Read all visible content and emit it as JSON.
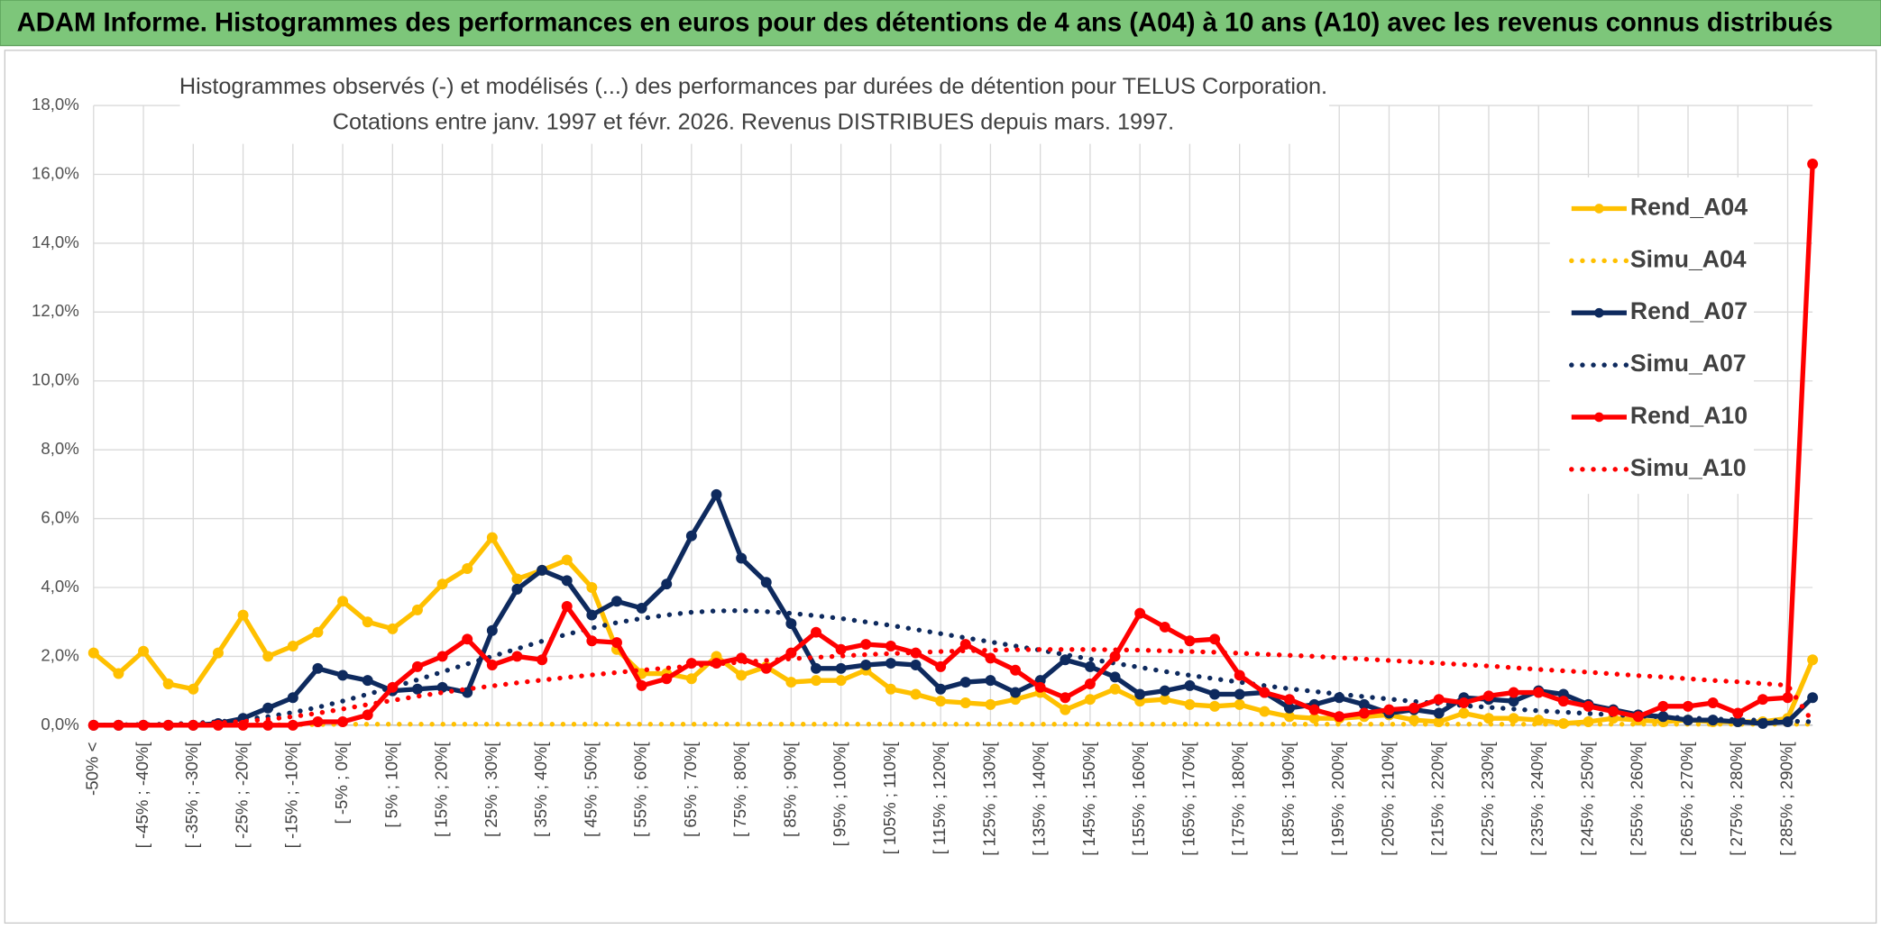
{
  "chart_data": {
    "type": "line",
    "title": "ADAM Informe. Histogrammes des performances en euros pour des détentions de 4 ans (A04) à 10 ans (A10) avec les revenus connus distribués",
    "subtitle": [
      "Histogrammes observés (-) et modélisés (...) des performances par durées de détention pour TELUS Corporation.",
      "Cotations entre janv. 1997 et févr. 2026. Revenus DISTRIBUES depuis mars. 1997."
    ],
    "categories": [
      "-50% <",
      null,
      "[ -45% ; -40%[",
      null,
      "[ -35% ; -30%[",
      null,
      "[ -25% ; -20%[",
      null,
      "[ -15% ; -10%[",
      null,
      "[ -5% ; 0%[",
      null,
      "[ 5% ; 10%[",
      null,
      "[ 15% ; 20%[",
      null,
      "[ 25% ; 30%[",
      null,
      "[ 35% ; 40%[",
      null,
      "[ 45% ; 50%[",
      null,
      "[ 55% ; 60%[",
      null,
      "[ 65% ; 70%[",
      null,
      "[ 75% ; 80%[",
      null,
      "[ 85% ; 90%[",
      null,
      "[ 95% ; 100%[",
      null,
      "[ 105% ; 110%[",
      null,
      "[ 115% ; 120%[",
      null,
      "[ 125% ; 130%[",
      null,
      "[ 135% ; 140%[",
      null,
      "[ 145% ; 150%[",
      null,
      "[ 155% ; 160%[",
      null,
      "[ 165% ; 170%[",
      null,
      "[ 175% ; 180%[",
      null,
      "[ 185% ; 190%[",
      null,
      "[ 195% ; 200%[",
      null,
      "[ 205% ; 210%[",
      null,
      "[ 215% ; 220%[",
      null,
      "[ 225% ; 230%[",
      null,
      "[ 235% ; 240%[",
      null,
      "[ 245% ; 250%[",
      null,
      "[ 255% ; 260%[",
      null,
      "[ 265% ; 270%[",
      null,
      "[ 275% ; 280%[",
      null,
      "[ 285% ; 290%[",
      null
    ],
    "series": [
      {
        "name": "Rend_A04",
        "color": "#ffc000",
        "style": "solid",
        "markers": true,
        "values": [
          2.1,
          1.5,
          2.15,
          1.2,
          1.05,
          2.1,
          3.2,
          2.0,
          2.3,
          2.7,
          3.6,
          3.0,
          2.8,
          3.35,
          4.1,
          4.55,
          5.45,
          4.25,
          4.5,
          4.8,
          4.0,
          2.2,
          1.5,
          1.5,
          1.35,
          2.0,
          1.45,
          1.7,
          1.25,
          1.3,
          1.3,
          1.6,
          1.05,
          0.9,
          0.7,
          0.65,
          0.6,
          0.75,
          0.95,
          0.45,
          0.75,
          1.05,
          0.7,
          0.75,
          0.6,
          0.55,
          0.6,
          0.4,
          0.25,
          0.2,
          0.2,
          0.25,
          0.3,
          0.15,
          0.1,
          0.35,
          0.2,
          0.2,
          0.15,
          0.05,
          0.1,
          0.2,
          0.15,
          0.1,
          0.15,
          0.1,
          0.1,
          0.1,
          0.2,
          1.9
        ]
      },
      {
        "name": "Simu_A04",
        "color": "#ffc000",
        "style": "dotted",
        "markers": false,
        "values": [
          0,
          0,
          0,
          0,
          0,
          0.01,
          0.01,
          0.01,
          0.02,
          0.02,
          0.03,
          0.03,
          0.03,
          0.03,
          0.03,
          0.03,
          0.03,
          0.03,
          0.03,
          0.03,
          0.03,
          0.03,
          0.03,
          0.03,
          0.03,
          0.03,
          0.03,
          0.03,
          0.03,
          0.03,
          0.03,
          0.03,
          0.03,
          0.03,
          0.03,
          0.03,
          0.03,
          0.03,
          0.03,
          0.03,
          0.03,
          0.03,
          0.03,
          0.03,
          0.03,
          0.03,
          0.03,
          0.03,
          0.03,
          0.03,
          0.03,
          0.03,
          0.03,
          0.03,
          0.03,
          0.03,
          0.03,
          0.03,
          0.03,
          0.03,
          0.03,
          0.03,
          0.03,
          0.03,
          0.03,
          0.03,
          0.03,
          0.03,
          0.03,
          0.03
        ]
      },
      {
        "name": "Rend_A07",
        "color": "#0e2a5e",
        "style": "solid",
        "markers": true,
        "values": [
          0,
          0,
          0,
          0,
          0,
          0.05,
          0.2,
          0.5,
          0.8,
          1.65,
          1.45,
          1.3,
          1.0,
          1.05,
          1.1,
          0.95,
          2.75,
          3.95,
          4.5,
          4.2,
          3.2,
          3.6,
          3.4,
          4.1,
          5.5,
          6.7,
          4.85,
          4.15,
          2.95,
          1.65,
          1.65,
          1.75,
          1.8,
          1.75,
          1.05,
          1.25,
          1.3,
          0.95,
          1.3,
          1.9,
          1.7,
          1.4,
          0.9,
          1.0,
          1.15,
          0.9,
          0.9,
          0.95,
          0.5,
          0.6,
          0.8,
          0.6,
          0.35,
          0.45,
          0.35,
          0.8,
          0.75,
          0.7,
          1.0,
          0.9,
          0.6,
          0.45,
          0.3,
          0.25,
          0.15,
          0.15,
          0.1,
          0.05,
          0.1,
          0.8
        ]
      },
      {
        "name": "Simu_A07",
        "color": "#0e2a5e",
        "style": "dotted",
        "markers": false,
        "values": [
          0,
          0.01,
          0.02,
          0.03,
          0.06,
          0.1,
          0.16,
          0.25,
          0.37,
          0.52,
          0.7,
          0.9,
          1.1,
          1.32,
          1.55,
          1.78,
          2.0,
          2.22,
          2.44,
          2.64,
          2.82,
          2.98,
          3.1,
          3.2,
          3.28,
          3.32,
          3.33,
          3.3,
          3.25,
          3.18,
          3.1,
          3.0,
          2.9,
          2.78,
          2.66,
          2.54,
          2.42,
          2.3,
          2.18,
          2.05,
          1.92,
          1.8,
          1.68,
          1.56,
          1.45,
          1.35,
          1.25,
          1.15,
          1.06,
          0.98,
          0.9,
          0.83,
          0.76,
          0.69,
          0.63,
          0.57,
          0.52,
          0.47,
          0.42,
          0.38,
          0.34,
          0.3,
          0.27,
          0.24,
          0.21,
          0.18,
          0.16,
          0.14,
          0.12,
          0.1
        ]
      },
      {
        "name": "Rend_A10",
        "color": "#ff0000",
        "style": "solid",
        "markers": true,
        "values": [
          0,
          0,
          0,
          0,
          0,
          0,
          0,
          0,
          0,
          0.1,
          0.1,
          0.3,
          1.1,
          1.7,
          2.0,
          2.5,
          1.75,
          2.0,
          1.9,
          3.45,
          2.45,
          2.4,
          1.15,
          1.35,
          1.8,
          1.8,
          1.95,
          1.65,
          2.1,
          2.7,
          2.2,
          2.35,
          2.3,
          2.1,
          1.7,
          2.35,
          1.95,
          1.6,
          1.1,
          0.8,
          1.2,
          2.0,
          3.25,
          2.85,
          2.45,
          2.5,
          1.45,
          0.95,
          0.75,
          0.45,
          0.25,
          0.35,
          0.45,
          0.5,
          0.75,
          0.65,
          0.85,
          0.95,
          0.95,
          0.7,
          0.55,
          0.4,
          0.25,
          0.55,
          0.55,
          0.65,
          0.35,
          0.75,
          0.8,
          16.3
        ]
      },
      {
        "name": "Simu_A10",
        "color": "#ff0000",
        "style": "dotted",
        "markers": false,
        "values": [
          0,
          0,
          0.01,
          0.02,
          0.04,
          0.07,
          0.11,
          0.17,
          0.25,
          0.35,
          0.47,
          0.6,
          0.72,
          0.84,
          0.95,
          1.05,
          1.14,
          1.23,
          1.31,
          1.39,
          1.46,
          1.53,
          1.6,
          1.66,
          1.72,
          1.78,
          1.83,
          1.88,
          1.93,
          1.97,
          2.01,
          2.05,
          2.08,
          2.11,
          2.14,
          2.16,
          2.18,
          2.19,
          2.2,
          2.2,
          2.2,
          2.19,
          2.18,
          2.16,
          2.14,
          2.12,
          2.09,
          2.06,
          2.03,
          2.0,
          1.96,
          1.92,
          1.88,
          1.84,
          1.8,
          1.76,
          1.72,
          1.67,
          1.62,
          1.58,
          1.54,
          1.49,
          1.44,
          1.4,
          1.35,
          1.3,
          1.26,
          1.21,
          1.16,
          0.1
        ]
      }
    ],
    "ylim": [
      0,
      18
    ],
    "yticks": [
      {
        "value": 0,
        "label": "0,0%"
      },
      {
        "value": 2,
        "label": "2,0%"
      },
      {
        "value": 4,
        "label": "4,0%"
      },
      {
        "value": 6,
        "label": "6,0%"
      },
      {
        "value": 8,
        "label": "8,0%"
      },
      {
        "value": 10,
        "label": "10,0%"
      },
      {
        "value": 12,
        "label": "12,0%"
      },
      {
        "value": 14,
        "label": "14,0%"
      },
      {
        "value": 16,
        "label": "16,0%"
      },
      {
        "value": 18,
        "label": "18,0%"
      }
    ],
    "grid": true,
    "legend": "upper right"
  }
}
